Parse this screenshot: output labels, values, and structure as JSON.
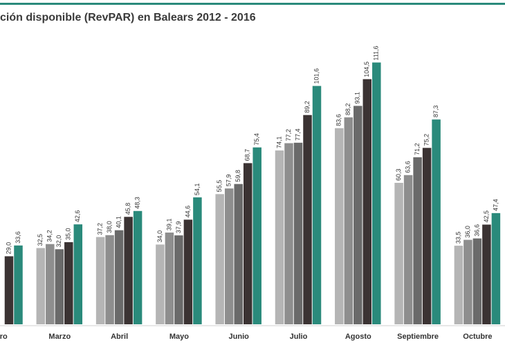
{
  "chart_data": {
    "type": "bar",
    "title": "ción disponible (RevPAR) en Balears 2012 - 2016",
    "categories": [
      "rero",
      "Marzo",
      "Abril",
      "Mayo",
      "Junio",
      "Julio",
      "Agosto",
      "Septiembre",
      "Octubre"
    ],
    "ylim": [
      0,
      115
    ],
    "series": [
      {
        "color": "#b5b5b5",
        "values": [
          null,
          32.5,
          37.2,
          34.0,
          55.5,
          74.1,
          83.6,
          60.3,
          33.5
        ],
        "value_labels": [
          null,
          "32,5",
          "37,2",
          "34,0",
          "55,5",
          "74,1",
          "83,6",
          "60,3",
          "33,5"
        ]
      },
      {
        "color": "#8e8e8e",
        "values": [
          null,
          34.2,
          38.0,
          39.1,
          57.9,
          77.2,
          88.2,
          63.6,
          36.0
        ],
        "value_labels": [
          null,
          "34,2",
          "38,0",
          "39,1",
          "57,9",
          "77,2",
          "88,2",
          "63,6",
          "36,0"
        ]
      },
      {
        "color": "#6a6a6a",
        "values": [
          null,
          32.0,
          40.1,
          37.9,
          59.8,
          77.4,
          93.1,
          71.2,
          36.6
        ],
        "value_labels": [
          null,
          "32,0",
          "40,1",
          "37,9",
          "59,8",
          "77,4",
          "93,1",
          "71,2",
          "36,6"
        ]
      },
      {
        "color": "#3b3333",
        "values": [
          29.0,
          35.0,
          45.8,
          44.6,
          68.7,
          89.2,
          104.5,
          75.2,
          42.5
        ],
        "value_labels": [
          "29,0",
          "35,0",
          "45,8",
          "44,6",
          "68,7",
          "89,2",
          "104,5",
          "75,2",
          "42,5"
        ]
      },
      {
        "color": "#2a8a7b",
        "values": [
          33.6,
          42.6,
          48.3,
          54.1,
          75.4,
          101.6,
          111.6,
          87.3,
          47.4
        ],
        "value_labels": [
          "33,6",
          "42,6",
          "48,3",
          "54,1",
          "75,4",
          "101,6",
          "111,6",
          "87,3",
          "47,4"
        ]
      }
    ]
  }
}
